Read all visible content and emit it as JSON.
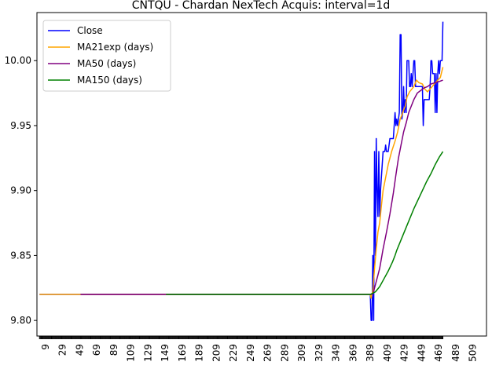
{
  "chart_data": {
    "type": "line",
    "title": "CNTQU - Chardan NexTech Acquis: interval=1d",
    "xlabel": "",
    "ylabel": "",
    "xlim": [
      -1,
      525
    ],
    "ylim": [
      9.788,
      10.037
    ],
    "yticks": [
      9.8,
      9.85,
      9.9,
      9.95,
      10.0
    ],
    "ytick_labels": [
      "9.80",
      "9.85",
      "9.90",
      "9.95",
      "10.00"
    ],
    "xticks": [
      9,
      29,
      49,
      69,
      89,
      109,
      129,
      149,
      169,
      189,
      209,
      229,
      249,
      269,
      289,
      309,
      329,
      349,
      369,
      389,
      409,
      429,
      449,
      469,
      489,
      509
    ],
    "grid": false,
    "legend": {
      "placement": "top-left",
      "entries": [
        "Close",
        "MA21exp (days)",
        "MA50 (days)",
        "MA150 (days)"
      ]
    },
    "series": [
      {
        "name": "Close",
        "color": "#0000ff",
        "points": [
          [
            2,
            9.82
          ],
          [
            389,
            9.82
          ],
          [
            390,
            9.8
          ],
          [
            391,
            9.8
          ],
          [
            392,
            9.85
          ],
          [
            393,
            9.8
          ],
          [
            394,
            9.93
          ],
          [
            395,
            9.85
          ],
          [
            396,
            9.94
          ],
          [
            397,
            9.9
          ],
          [
            398,
            9.88
          ],
          [
            399,
            9.93
          ],
          [
            400,
            9.88
          ],
          [
            401,
            9.9
          ],
          [
            402,
            9.91
          ],
          [
            403,
            9.92
          ],
          [
            404,
            9.93
          ],
          [
            406,
            9.93
          ],
          [
            407,
            9.935
          ],
          [
            408,
            9.93
          ],
          [
            410,
            9.93
          ],
          [
            412,
            9.94
          ],
          [
            414,
            9.94
          ],
          [
            416,
            9.94
          ],
          [
            418,
            9.96
          ],
          [
            419,
            9.95
          ],
          [
            420,
            9.955
          ],
          [
            421,
            9.95
          ],
          [
            422,
            9.955
          ],
          [
            423,
            9.96
          ],
          [
            424,
            10.02
          ],
          [
            425,
            10.02
          ],
          [
            426,
            9.955
          ],
          [
            427,
            9.96
          ],
          [
            428,
            9.98
          ],
          [
            429,
            9.96
          ],
          [
            430,
            9.97
          ],
          [
            431,
            9.96
          ],
          [
            432,
            10.0
          ],
          [
            434,
            10.0
          ],
          [
            435,
            9.98
          ],
          [
            436,
            9.98
          ],
          [
            437,
            9.99
          ],
          [
            438,
            9.98
          ],
          [
            439,
            9.99
          ],
          [
            440,
            10.0
          ],
          [
            441,
            10.0
          ],
          [
            442,
            9.98
          ],
          [
            450,
            9.98
          ],
          [
            451,
            9.95
          ],
          [
            452,
            9.97
          ],
          [
            458,
            9.97
          ],
          [
            459,
            9.98
          ],
          [
            460,
            10.0
          ],
          [
            461,
            10.0
          ],
          [
            462,
            9.99
          ],
          [
            464,
            9.99
          ],
          [
            465,
            9.96
          ],
          [
            466,
            9.99
          ],
          [
            467,
            9.96
          ],
          [
            468,
            9.99
          ],
          [
            469,
            10.0
          ],
          [
            470,
            9.99
          ],
          [
            471,
            10.0
          ],
          [
            472,
            10.0
          ],
          [
            473,
            10.0
          ],
          [
            474,
            10.03
          ]
        ]
      },
      {
        "name": "MA21exp (days)",
        "color": "#ffa500",
        "points": [
          [
            2,
            9.82
          ],
          [
            49,
            9.82
          ],
          [
            389,
            9.82
          ],
          [
            390,
            9.817
          ],
          [
            392,
            9.823
          ],
          [
            394,
            9.84
          ],
          [
            396,
            9.855
          ],
          [
            398,
            9.868
          ],
          [
            400,
            9.875
          ],
          [
            402,
            9.888
          ],
          [
            404,
            9.9
          ],
          [
            407,
            9.91
          ],
          [
            410,
            9.92
          ],
          [
            414,
            9.93
          ],
          [
            418,
            9.938
          ],
          [
            421,
            9.945
          ],
          [
            424,
            9.955
          ],
          [
            426,
            9.958
          ],
          [
            428,
            9.962
          ],
          [
            430,
            9.965
          ],
          [
            432,
            9.972
          ],
          [
            435,
            9.976
          ],
          [
            440,
            9.98
          ],
          [
            443,
            9.985
          ],
          [
            446,
            9.983
          ],
          [
            450,
            9.982
          ],
          [
            453,
            9.978
          ],
          [
            456,
            9.976
          ],
          [
            460,
            9.979
          ],
          [
            464,
            9.982
          ],
          [
            468,
            9.985
          ],
          [
            471,
            9.987
          ],
          [
            474,
            9.995
          ]
        ]
      },
      {
        "name": "MA50 (days)",
        "color": "#800080",
        "points": [
          [
            50,
            9.82
          ],
          [
            389,
            9.82
          ],
          [
            392,
            9.82
          ],
          [
            396,
            9.83
          ],
          [
            400,
            9.84
          ],
          [
            404,
            9.855
          ],
          [
            408,
            9.868
          ],
          [
            412,
            9.882
          ],
          [
            416,
            9.898
          ],
          [
            419,
            9.912
          ],
          [
            422,
            9.925
          ],
          [
            425,
            9.935
          ],
          [
            428,
            9.945
          ],
          [
            431,
            9.952
          ],
          [
            434,
            9.96
          ],
          [
            437,
            9.965
          ],
          [
            440,
            9.97
          ],
          [
            444,
            9.975
          ],
          [
            448,
            9.977
          ],
          [
            452,
            9.979
          ],
          [
            456,
            9.98
          ],
          [
            460,
            9.982
          ],
          [
            465,
            9.983
          ],
          [
            470,
            9.984
          ],
          [
            474,
            9.985
          ]
        ]
      },
      {
        "name": "MA150 (days)",
        "color": "#008000",
        "points": [
          [
            150,
            9.82
          ],
          [
            389,
            9.82
          ],
          [
            395,
            9.822
          ],
          [
            400,
            9.826
          ],
          [
            405,
            9.832
          ],
          [
            410,
            9.838
          ],
          [
            415,
            9.845
          ],
          [
            418,
            9.85
          ],
          [
            420,
            9.854
          ],
          [
            425,
            9.862
          ],
          [
            430,
            9.87
          ],
          [
            435,
            9.878
          ],
          [
            440,
            9.886
          ],
          [
            445,
            9.893
          ],
          [
            450,
            9.9
          ],
          [
            455,
            9.907
          ],
          [
            460,
            9.913
          ],
          [
            465,
            9.92
          ],
          [
            470,
            9.926
          ],
          [
            474,
            9.93
          ]
        ]
      }
    ]
  }
}
